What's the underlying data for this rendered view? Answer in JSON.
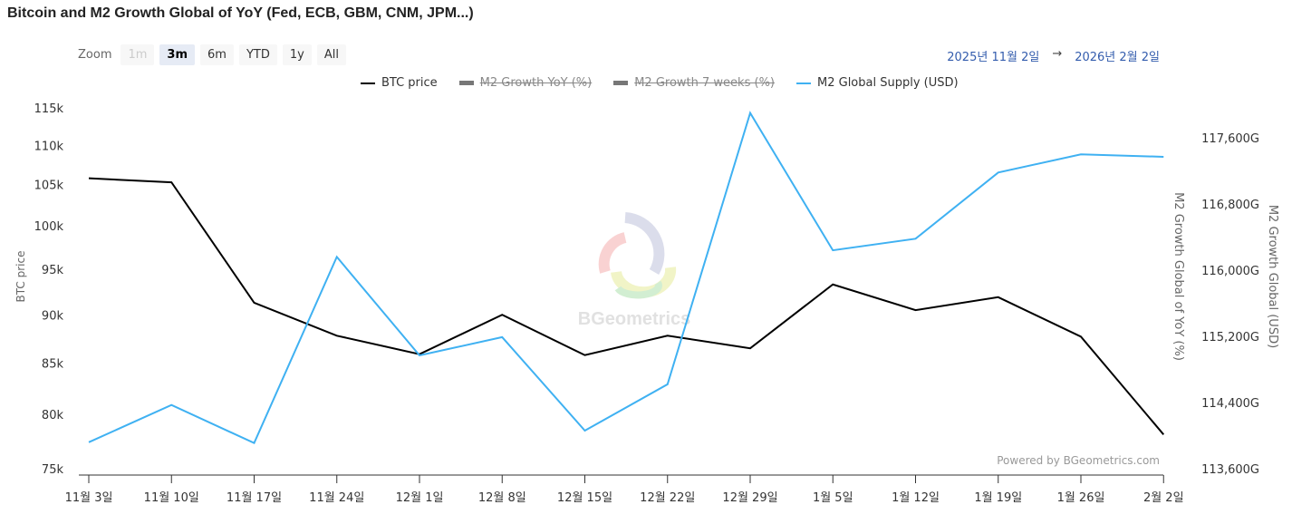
{
  "title": "Bitcoin and M2 Growth Global of YoY (Fed, ECB, GBM, CNM, JPM...)",
  "zoom": {
    "label": "Zoom",
    "buttons": [
      "1m",
      "3m",
      "6m",
      "YTD",
      "1y",
      "All"
    ],
    "selected": "3m",
    "disabled": [
      "1m"
    ]
  },
  "range": {
    "from": "2025년 11월 2일",
    "arrow": "→",
    "to": "2026년 2월 2일"
  },
  "watermark": "BGeometrics",
  "credits": "Powered by BGeometrics.com",
  "chart_data": {
    "type": "line",
    "title": "Bitcoin and M2 Growth Global of YoY (Fed, ECB, GBM, CNM, JPM...)",
    "categories": [
      "11월 3일",
      "11월 10일",
      "11월 17일",
      "11월 24일",
      "12월 1일",
      "12월 8일",
      "12월 15일",
      "12월 22일",
      "12월 29일",
      "1월 5일",
      "1월 12일",
      "1월 19일",
      "1월 26일",
      "2월 2일"
    ],
    "legend": [
      {
        "name": "BTC price",
        "visible": true,
        "color": "#000000"
      },
      {
        "name": "M2 Growth YoY (%)",
        "visible": false,
        "color": "#777777"
      },
      {
        "name": "M2 Growth 7 weeks (%)",
        "visible": false,
        "color": "#777777"
      },
      {
        "name": "M2 Global Supply (USD)",
        "visible": true,
        "color": "#3fb1f2"
      }
    ],
    "legend_placement": "top",
    "series": [
      {
        "name": "BTC price",
        "axis": "left",
        "color": "#000000",
        "values": [
          105800,
          105300,
          91300,
          87800,
          85900,
          90000,
          85800,
          87800,
          86500,
          93300,
          90500,
          91900,
          87700,
          78100
        ]
      },
      {
        "name": "M2 Global Supply (USD)",
        "axis": "right2",
        "color": "#3fb1f2",
        "values": [
          113920,
          114370,
          113910,
          116160,
          114970,
          115190,
          114060,
          114620,
          117900,
          116240,
          116380,
          117180,
          117400,
          117370
        ]
      }
    ],
    "y_left": {
      "label": "BTC price",
      "scale": "log",
      "range": [
        75000,
        115000
      ],
      "ticks": [
        "75k",
        "80k",
        "85k",
        "90k",
        "95k",
        "100k",
        "105k",
        "110k",
        "115k"
      ],
      "tick_values": [
        75000,
        80000,
        85000,
        90000,
        95000,
        100000,
        105000,
        110000,
        115000
      ]
    },
    "y_right1": {
      "label": "M2 Growth Global of YoY (%)"
    },
    "y_right2": {
      "label": "M2 Growth Global (USD)",
      "scale": "linear",
      "range": [
        113600,
        117600
      ],
      "ticks": [
        "113,600G",
        "114,400G",
        "115,200G",
        "116,000G",
        "116,800G",
        "117,600G"
      ],
      "tick_values": [
        113600,
        114400,
        115200,
        116000,
        116800,
        117600
      ]
    },
    "grid": false
  }
}
